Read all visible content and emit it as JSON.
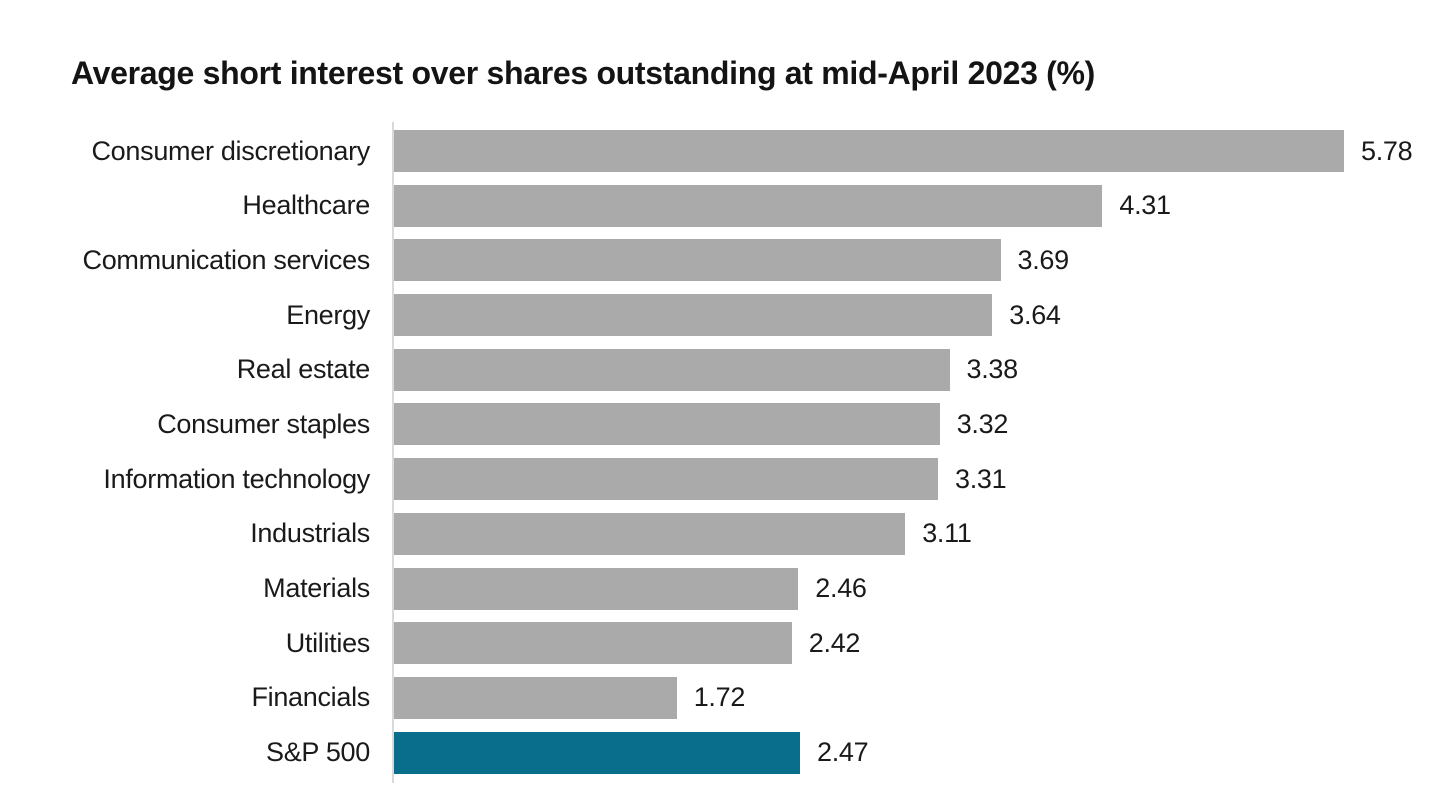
{
  "chart_data": {
    "type": "bar",
    "orientation": "horizontal",
    "title": "Average short interest over shares outstanding at mid-April 2023 (%)",
    "categories": [
      "Consumer discretionary",
      "Healthcare",
      "Communication services",
      "Energy",
      "Real estate",
      "Consumer staples",
      "Information technology",
      "Industrials",
      "Materials",
      "Utilities",
      "Financials",
      "S&P 500"
    ],
    "values": [
      5.78,
      4.31,
      3.69,
      3.64,
      3.38,
      3.32,
      3.31,
      3.11,
      2.46,
      2.42,
      1.72,
      2.47
    ],
    "value_labels": [
      "5.78",
      "4.31",
      "3.69",
      "3.64",
      "3.38",
      "3.32",
      "3.31",
      "3.11",
      "2.46",
      "2.42",
      "1.72",
      "2.47"
    ],
    "highlight_category": "S&P 500",
    "xlim": [
      0,
      5.78
    ],
    "grid": "off",
    "legend": "none",
    "value_label_position": "end-of-bar",
    "colors": {
      "bar": "#AAAAAA",
      "highlight": "#096D8C",
      "axis_line": "#D9D9D9",
      "text": "#1A1A1A",
      "background": "#FFFFFF"
    }
  }
}
